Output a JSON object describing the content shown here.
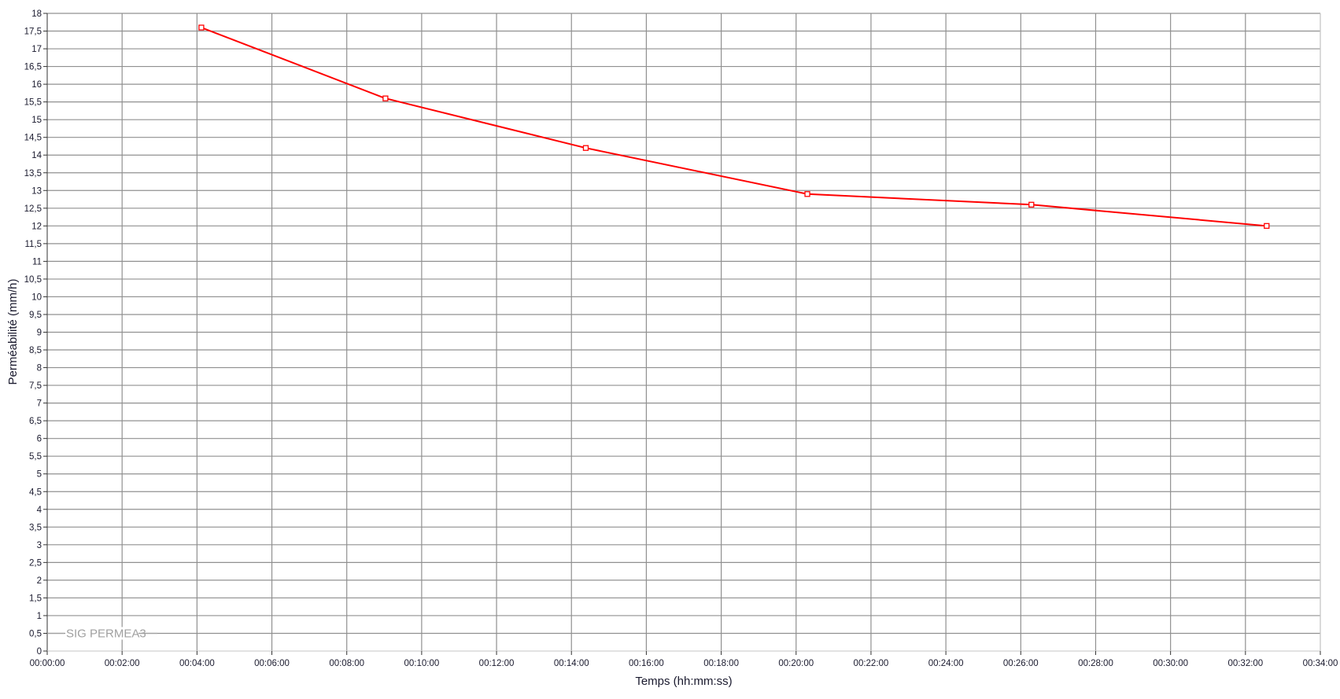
{
  "chart_data": {
    "type": "line",
    "title": "",
    "xlabel": "Temps (hh:mm:ss)",
    "ylabel": "Perméabilité (mm/h)",
    "xlim": [
      "00:00:00",
      "00:34:00"
    ],
    "ylim": [
      0,
      18
    ],
    "x_ticks": [
      "00:00:00",
      "00:02:00",
      "00:04:00",
      "00:06:00",
      "00:08:00",
      "00:10:00",
      "00:12:00",
      "00:14:00",
      "00:16:00",
      "00:18:00",
      "00:20:00",
      "00:22:00",
      "00:24:00",
      "00:26:00",
      "00:28:00",
      "00:30:00",
      "00:32:00",
      "00:34:00"
    ],
    "y_ticks": [
      "0",
      "0,5",
      "1",
      "1,5",
      "2",
      "2,5",
      "3",
      "3,5",
      "4",
      "4,5",
      "5",
      "5,5",
      "6",
      "6,5",
      "7",
      "7,5",
      "8",
      "8,5",
      "9",
      "9,5",
      "10",
      "10,5",
      "11",
      "11,5",
      "12",
      "12,5",
      "13",
      "13,5",
      "14",
      "14,5",
      "15",
      "15,5",
      "16",
      "16,5",
      "17",
      "17,5",
      "18"
    ],
    "grid": true,
    "legend_placement": "bottom-left",
    "series": [
      {
        "name": "SIG PERMEA3",
        "color": "#ff0000",
        "marker": "square",
        "x": [
          "00:04:07",
          "00:09:02",
          "00:14:23",
          "00:20:18",
          "00:26:17",
          "00:32:34"
        ],
        "y": [
          17.6,
          15.6,
          14.2,
          12.9,
          12.6,
          12.0
        ]
      }
    ]
  },
  "colors": {
    "grid": "#909090",
    "text": "#1a1a2e",
    "legend_text": "#a0a0a0"
  }
}
